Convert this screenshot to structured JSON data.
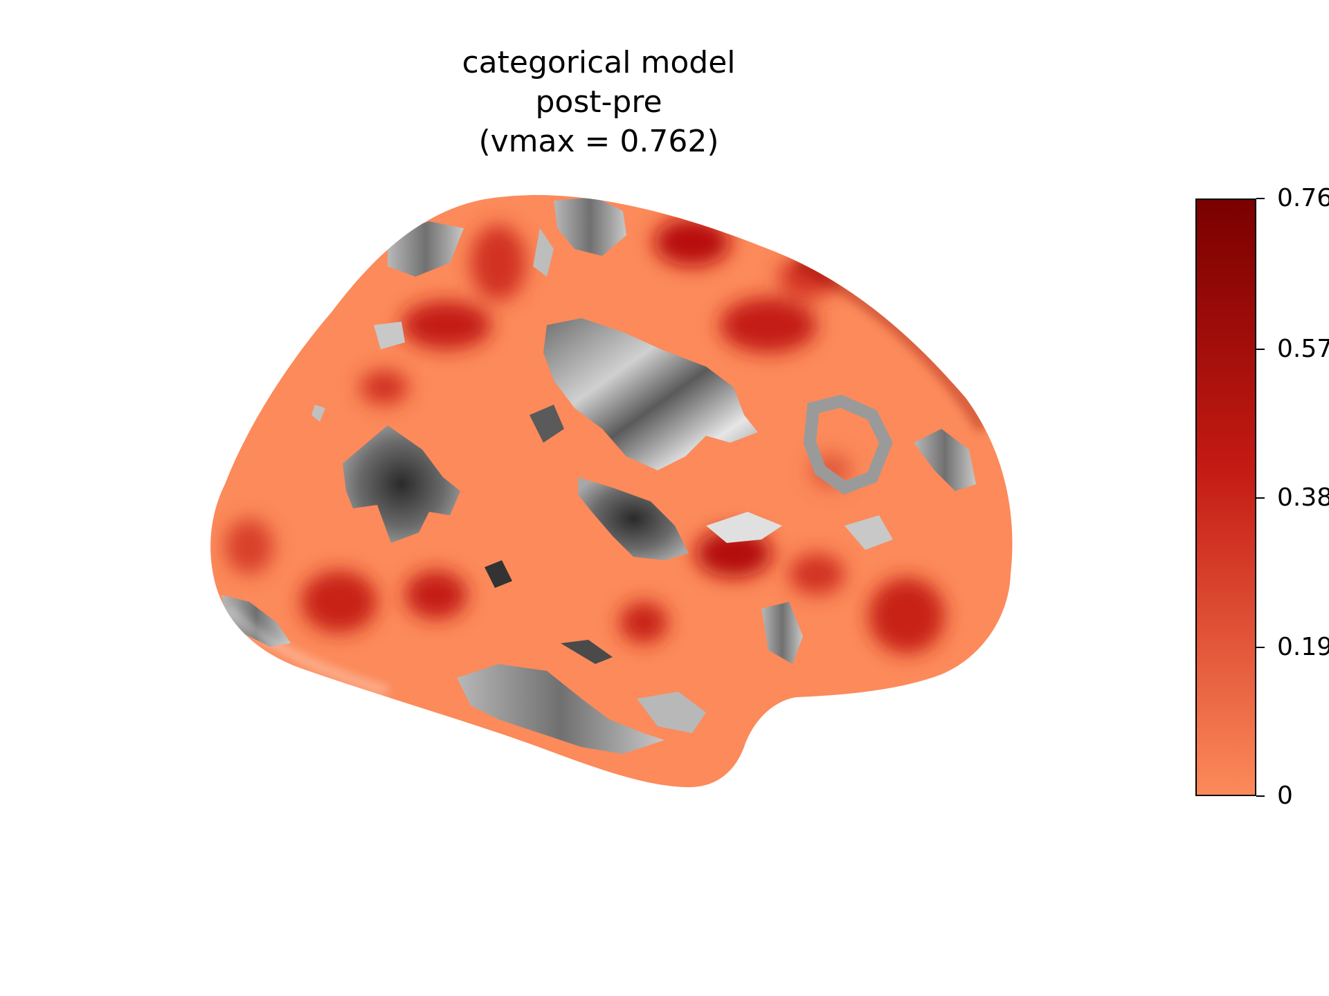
{
  "title": {
    "line1": "categorical model",
    "line2": "post-pre",
    "line3": "(vmax = 0.762)"
  },
  "colorbar": {
    "min": 0,
    "max": 0.762,
    "colors": {
      "low": "#fc8a5a",
      "mid": "#c41a13",
      "high": "#7a0000"
    },
    "ticks": [
      {
        "value": 0,
        "label": "0"
      },
      {
        "value": 0.19,
        "label": "0.19"
      },
      {
        "value": 0.38,
        "label": "0.38"
      },
      {
        "value": 0.57,
        "label": "0.57"
      },
      {
        "value": 0.762,
        "label": "0.76"
      }
    ]
  },
  "surface": {
    "base_color": "#fc8a5a",
    "view": "left-hemisphere-lateral"
  }
}
